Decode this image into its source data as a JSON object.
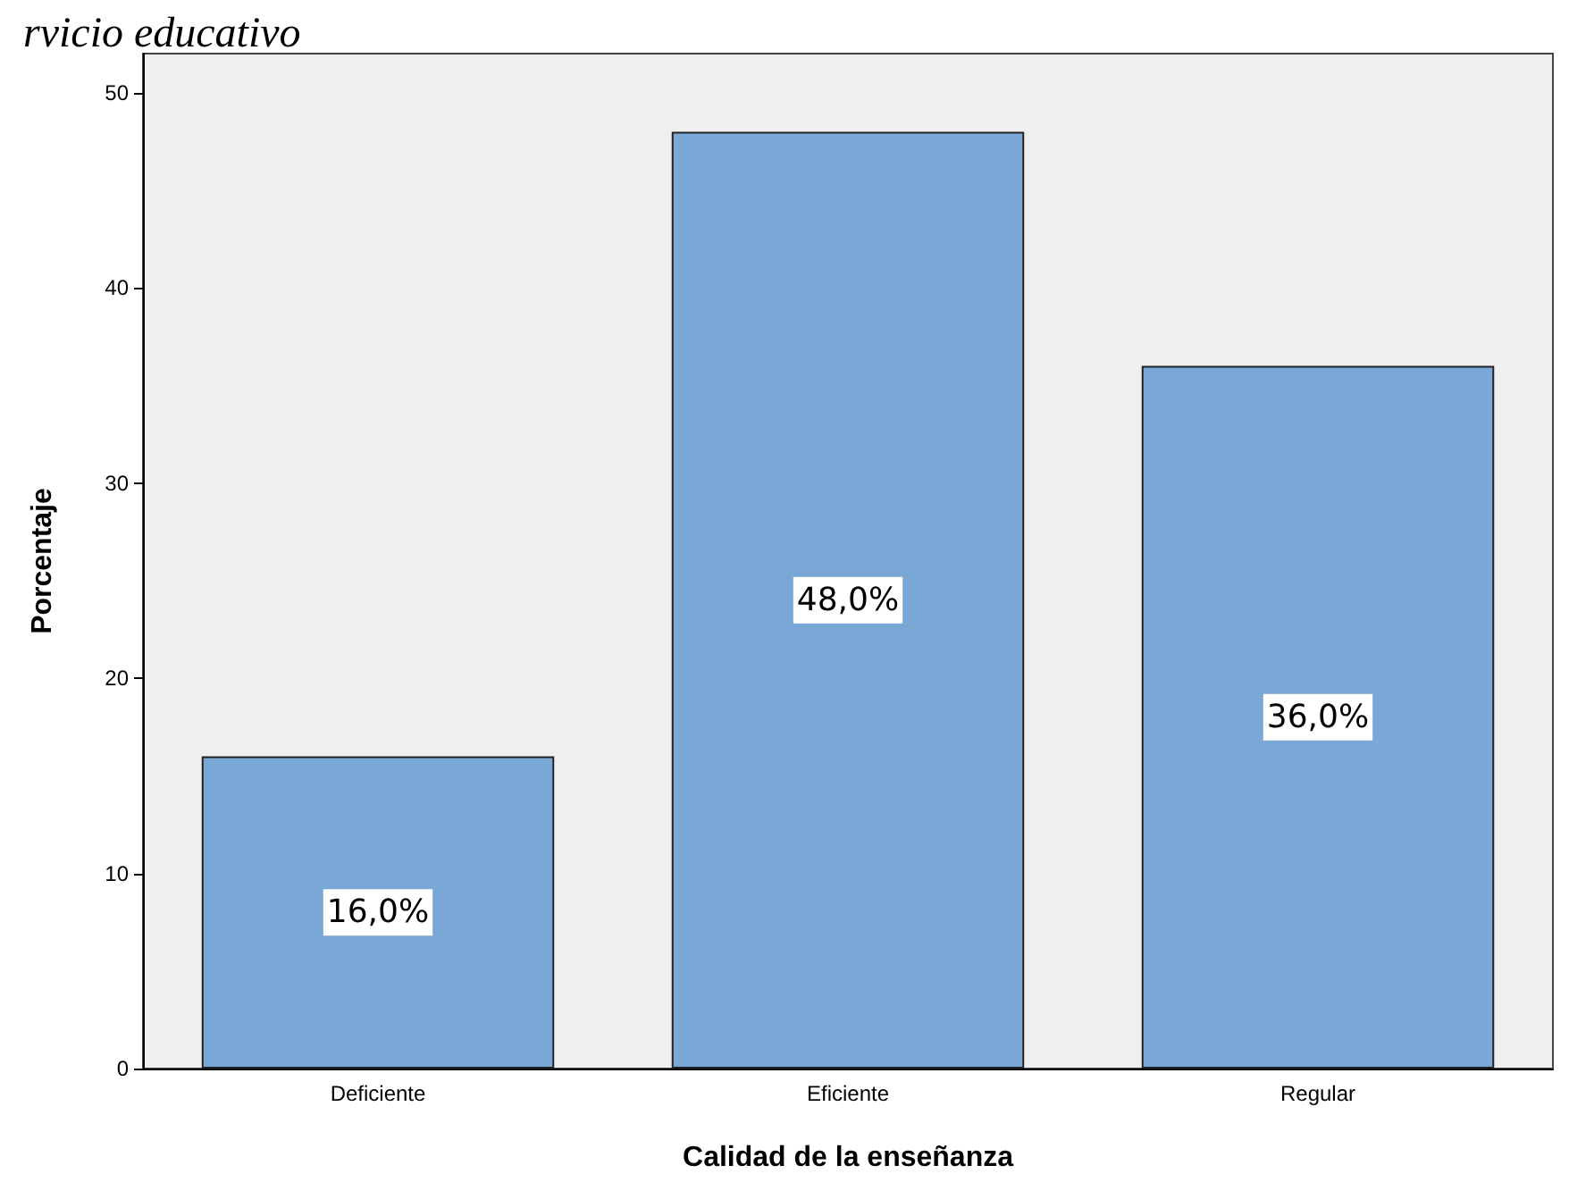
{
  "chart_data": {
    "type": "bar",
    "title": "rvicio educativo",
    "xlabel": "Calidad de la enseñanza",
    "ylabel": "Porcentaje",
    "categories": [
      "Deficiente",
      "Eficiente",
      "Regular"
    ],
    "values": [
      16,
      48,
      36
    ],
    "color": "#79a8d6",
    "value_labels": [
      "16,0%",
      "48,0%",
      "36,0%"
    ],
    "ylim": [
      0,
      52
    ],
    "yticks": [
      0,
      10,
      20,
      30,
      40,
      50
    ],
    "grid": false
  }
}
